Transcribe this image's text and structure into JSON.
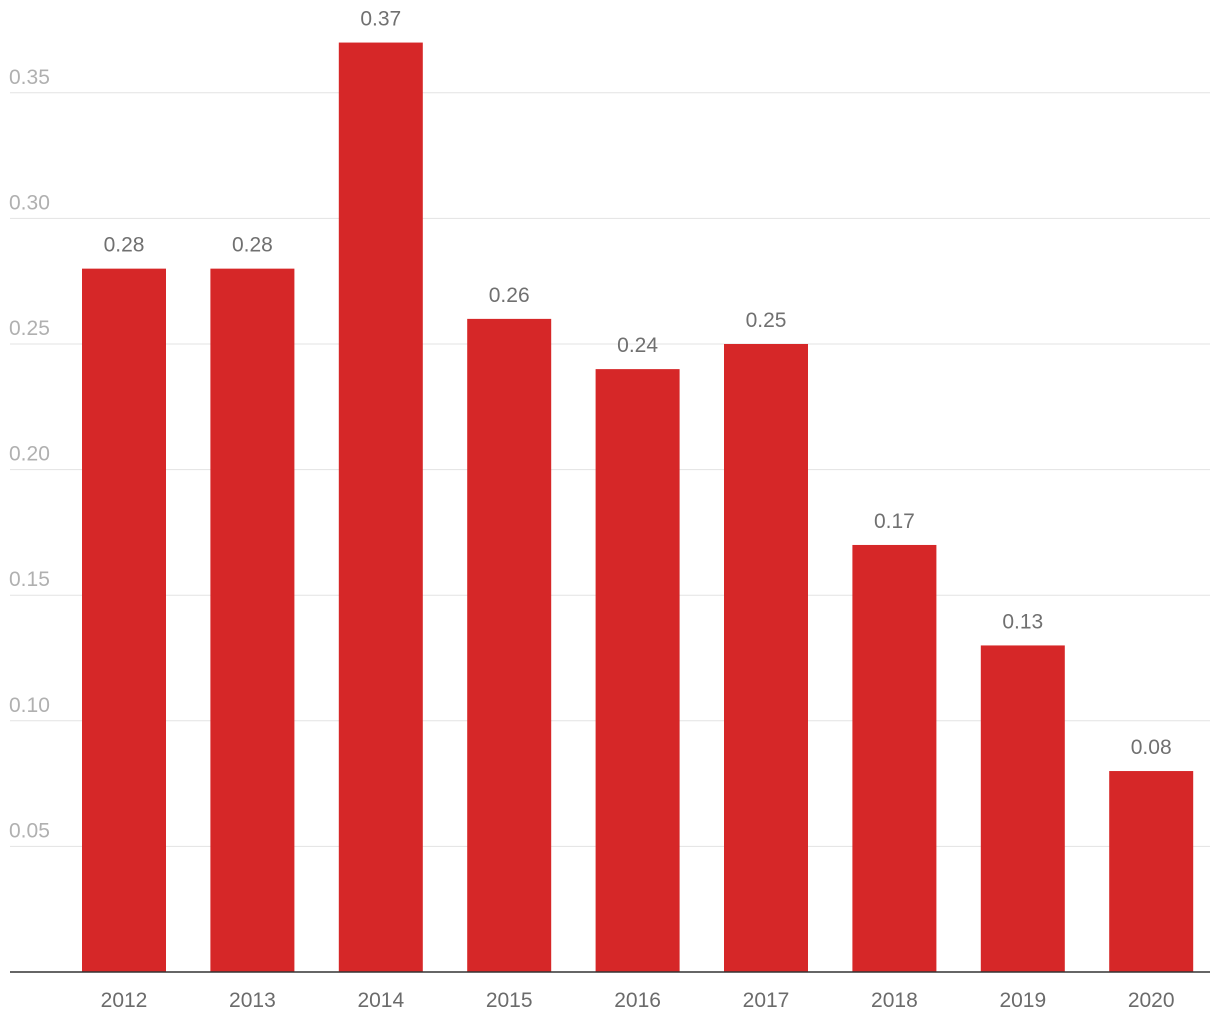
{
  "chart_data": {
    "type": "bar",
    "categories": [
      "2012",
      "2013",
      "2014",
      "2015",
      "2016",
      "2017",
      "2018",
      "2019",
      "2020"
    ],
    "values": [
      0.28,
      0.28,
      0.37,
      0.26,
      0.24,
      0.25,
      0.17,
      0.13,
      0.08
    ],
    "data_labels": [
      "0.28",
      "0.28",
      "0.37",
      "0.26",
      "0.24",
      "0.25",
      "0.17",
      "0.13",
      "0.08"
    ],
    "y_ticks": [
      0.05,
      0.1,
      0.15,
      0.2,
      0.25,
      0.3,
      0.35
    ],
    "y_tick_labels": [
      "0.05",
      "0.10",
      "0.15",
      "0.20",
      "0.25",
      "0.30",
      "0.35"
    ],
    "ylim": [
      0,
      0.385
    ],
    "title": "",
    "xlabel": "",
    "ylabel": "",
    "grid": true,
    "legend": "none",
    "bar_color": "#d62728",
    "grid_color": "#e3e3e3",
    "axis_color": "#333333"
  }
}
